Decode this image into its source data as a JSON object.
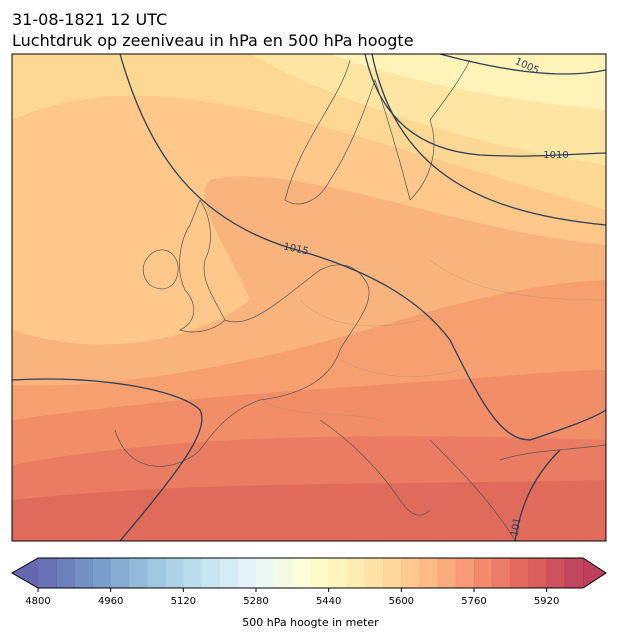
{
  "header": {
    "title": "31-08-1821 12 UTC",
    "subtitle": "Luchtdruk op zeeniveau in hPa en 500 hPa hoogte"
  },
  "map": {
    "contour_labels": [
      "1005",
      "1010",
      "1015",
      "101"
    ]
  },
  "colorbar": {
    "range": [
      4800,
      6000
    ],
    "step": 40,
    "ticks": [
      4800,
      4960,
      5120,
      5280,
      5440,
      5600,
      5760,
      5920
    ],
    "label": "500 hPa hoogte in meter",
    "extend": "both"
  }
}
